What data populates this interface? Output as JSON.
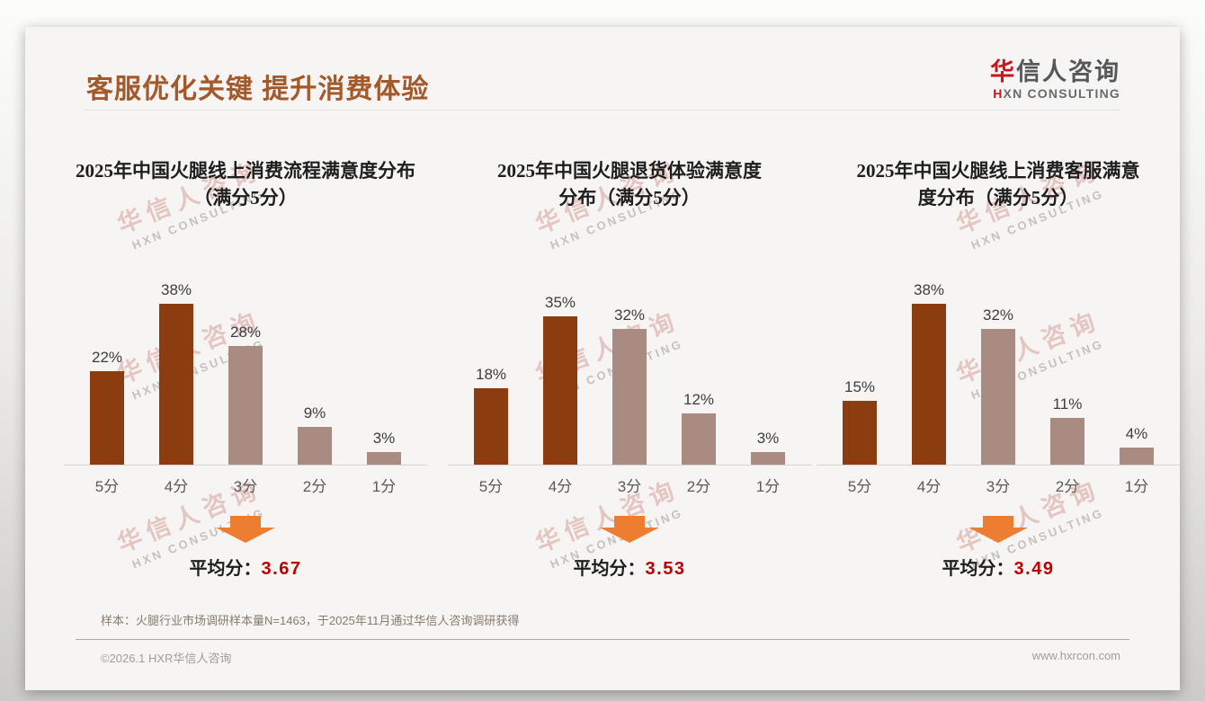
{
  "slide": {
    "title": "客服优化关键 提升消费体验",
    "logo": {
      "cn_red": "华",
      "cn_rest": "信人咨询",
      "en_red": "H",
      "en_rest": "XN CONSULTING"
    },
    "watermark": {
      "line1": "华信人咨询",
      "line2": "HXN CONSULTING"
    },
    "footnote": "样本：火腿行业市场调研样本量N=1463，于2025年11月通过华信人咨询调研获得",
    "footer_left": "©2026.1 HXR华信人咨询",
    "footer_right": "www.hxrcon.com"
  },
  "colors": {
    "title_brown": "#A4592A",
    "bar_dark": "#8B3D0F",
    "bar_light": "#AA8B81",
    "arrow_orange": "#ED7D31",
    "average_red": "#C00000",
    "logo_red": "#C8161E",
    "logo_gray": "#55575B"
  },
  "chart_data": [
    {
      "type": "bar",
      "title": "2025年中国火腿线上消费流程满意度分布（满分5分）",
      "title_lines": [
        "2025年中国火腿线上消费流程满意度分布",
        "（满分5分）"
      ],
      "categories": [
        "5分",
        "4分",
        "3分",
        "2分",
        "1分"
      ],
      "values": [
        22,
        38,
        28,
        9,
        3
      ],
      "value_labels": [
        "22%",
        "38%",
        "28%",
        "9%",
        "3%"
      ],
      "bar_colors": [
        "#8B3D0F",
        "#8B3D0F",
        "#AA8B81",
        "#AA8B81",
        "#AA8B81"
      ],
      "xlabel": "",
      "ylabel": "",
      "ylim": [
        0,
        40
      ],
      "grid": false,
      "legend": "none",
      "average_label": "平均分：",
      "average_value": "3.67"
    },
    {
      "type": "bar",
      "title": "2025年中国火腿退货体验满意度分布（满分5分）",
      "title_lines": [
        "2025年中国火腿退货体验满意度",
        "分布（满分5分）"
      ],
      "categories": [
        "5分",
        "4分",
        "3分",
        "2分",
        "1分"
      ],
      "values": [
        18,
        35,
        32,
        12,
        3
      ],
      "value_labels": [
        "18%",
        "35%",
        "32%",
        "12%",
        "3%"
      ],
      "bar_colors": [
        "#8B3D0F",
        "#8B3D0F",
        "#AA8B81",
        "#AA8B81",
        "#AA8B81"
      ],
      "xlabel": "",
      "ylabel": "",
      "ylim": [
        0,
        40
      ],
      "grid": false,
      "legend": "none",
      "average_label": "平均分：",
      "average_value": "3.53"
    },
    {
      "type": "bar",
      "title": "2025年中国火腿线上消费客服满意度分布（满分5分）",
      "title_lines": [
        "2025年中国火腿线上消费客服满意",
        "度分布（满分5分）"
      ],
      "categories": [
        "5分",
        "4分",
        "3分",
        "2分",
        "1分"
      ],
      "values": [
        15,
        38,
        32,
        11,
        4
      ],
      "value_labels": [
        "15%",
        "38%",
        "32%",
        "11%",
        "4%"
      ],
      "bar_colors": [
        "#8B3D0F",
        "#8B3D0F",
        "#AA8B81",
        "#AA8B81",
        "#AA8B81"
      ],
      "xlabel": "",
      "ylabel": "",
      "ylim": [
        0,
        40
      ],
      "grid": false,
      "legend": "none",
      "average_label": "平均分：",
      "average_value": "3.49"
    }
  ]
}
